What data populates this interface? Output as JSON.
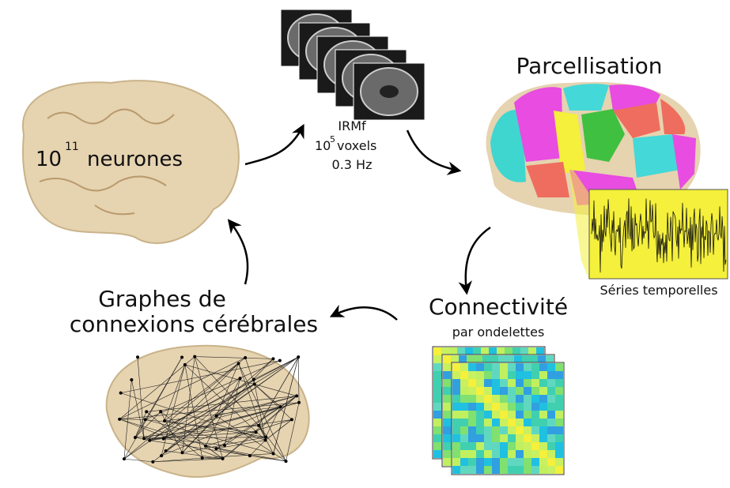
{
  "neurons": {
    "base": "10",
    "exponent": "11",
    "label": "neurones"
  },
  "fmri": {
    "title": "IRMf",
    "voxels_base": "10",
    "voxels_exponent": "5",
    "voxels_label": "voxels",
    "rate": "0.3 Hz"
  },
  "parcellation": {
    "title": "Parcellisation",
    "caption": "Séries temporelles"
  },
  "connectivity": {
    "title": "Connectivité",
    "subtitle": "par ondelettes"
  },
  "graphs": {
    "line1": "Graphes de",
    "line2": "connexions cérébrales"
  }
}
